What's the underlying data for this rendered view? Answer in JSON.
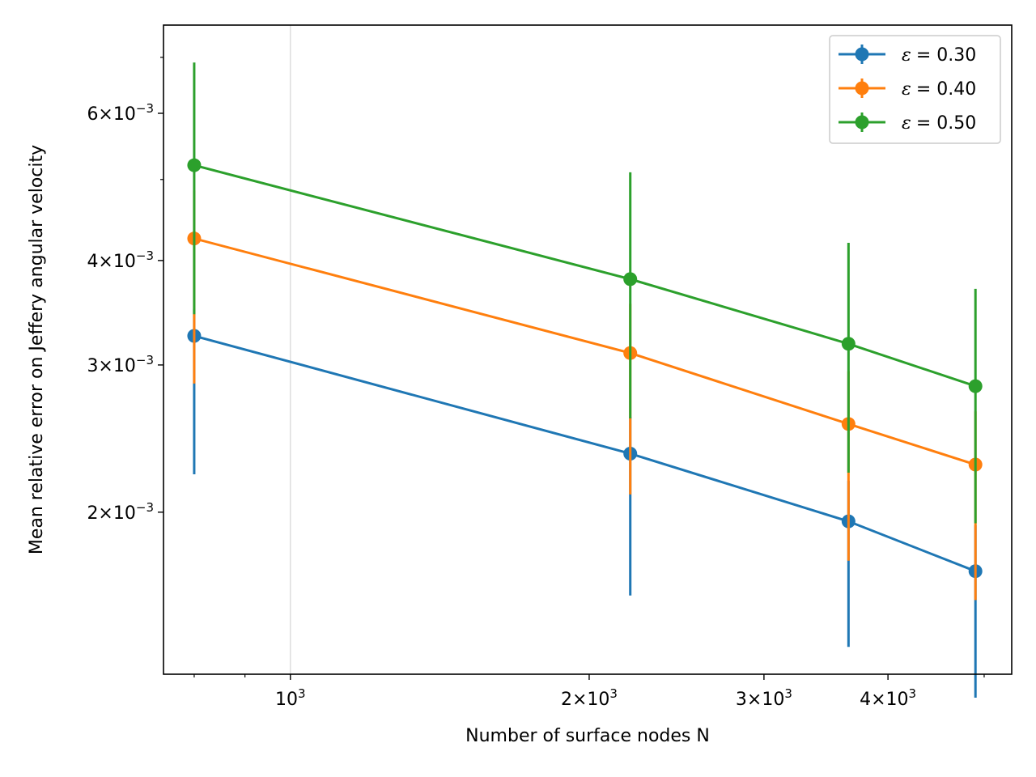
{
  "chart_data": {
    "type": "line",
    "title": "",
    "xlabel": "Number of surface nodes N",
    "ylabel": "Mean relative error on Jeffery angular velocity",
    "xscale": "log",
    "yscale": "log",
    "xlim": [
      745,
      5330
    ],
    "ylim": [
      0.00128,
      0.00765
    ],
    "x": [
      800,
      2200,
      3650,
      4900
    ],
    "xticks": [
      {
        "value": 1000,
        "label": "10",
        "exp": "3"
      },
      {
        "value": 2000,
        "label": "2×10",
        "exp": "3"
      },
      {
        "value": 3000,
        "label": "3×10",
        "exp": "3"
      },
      {
        "value": 4000,
        "label": "4×10",
        "exp": "3"
      }
    ],
    "yticks": [
      {
        "value": 0.002,
        "label": "2×10",
        "exp": "−3"
      },
      {
        "value": 0.003,
        "label": "3×10",
        "exp": "−3"
      },
      {
        "value": 0.004,
        "label": "4×10",
        "exp": "−3"
      },
      {
        "value": 0.006,
        "label": "6×10",
        "exp": "−3"
      }
    ],
    "grid": "vertical line at x = 10^3",
    "legend_position": "top-right",
    "series": [
      {
        "name": "ε = 0.30",
        "legend_symbol": "ε",
        "legend_value": "= 0.30",
        "color": "#1f77b4",
        "values": [
          0.00325,
          0.00235,
          0.00195,
          0.0017
        ],
        "err_low": [
          0.00222,
          0.00159,
          0.00138,
          0.0012
        ],
        "err_high": [
          0.0035,
          0.0026,
          0.00218,
          0.00193
        ]
      },
      {
        "name": "ε = 0.40",
        "legend_symbol": "ε",
        "legend_value": "= 0.40",
        "color": "#ff7f0e",
        "values": [
          0.00425,
          0.0031,
          0.00255,
          0.00228
        ],
        "err_low": [
          0.00285,
          0.0021,
          0.00175,
          0.00157
        ],
        "err_high": [
          0.00485,
          0.00355,
          0.00295,
          0.00264
        ]
      },
      {
        "name": "ε = 0.50",
        "legend_symbol": "ε",
        "legend_value": "= 0.50",
        "color": "#2ca02c",
        "values": [
          0.0052,
          0.0038,
          0.00318,
          0.00283
        ],
        "err_low": [
          0.00345,
          0.00259,
          0.00223,
          0.00194
        ],
        "err_high": [
          0.0069,
          0.0051,
          0.0042,
          0.0037
        ]
      }
    ]
  }
}
